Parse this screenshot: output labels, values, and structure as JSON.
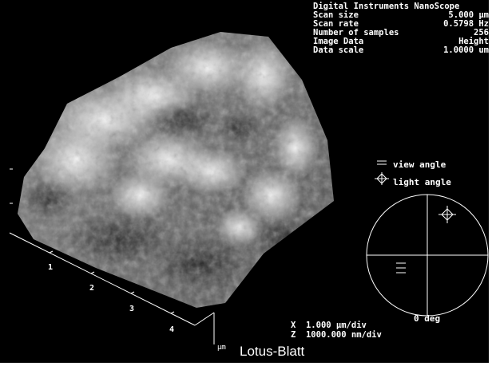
{
  "header": {
    "instrument": "Digital Instruments NanoScope",
    "params": [
      {
        "label": "Scan size",
        "value": "5.000 µm"
      },
      {
        "label": "Scan rate",
        "value": "0.5798 Hz"
      },
      {
        "label": "Number of samples",
        "value": "256"
      },
      {
        "label": "Image Data",
        "value": "Height"
      },
      {
        "label": "Data scale",
        "value": "1.0000 um"
      }
    ]
  },
  "legend": {
    "view_angle": "view angle",
    "light_angle": "light angle",
    "view_angle_icon": "dash-marker-icon",
    "light_angle_icon": "diamond-crosshair-icon"
  },
  "orientation_dial": {
    "angle_label": "0 deg"
  },
  "axes": {
    "x_ticks": [
      "1",
      "2",
      "3",
      "4"
    ],
    "unit": "µm"
  },
  "scale": {
    "x_prefix": "X",
    "x_value": "1.000 µm/div",
    "z_prefix": "Z",
    "z_value": "1000.000 nm/div"
  },
  "caption": "Lotus-Blatt",
  "colors": {
    "background": "#000000",
    "text": "#ffffff",
    "surface_light": "#f2f2f2",
    "surface_dark": "#3a3a3a"
  }
}
